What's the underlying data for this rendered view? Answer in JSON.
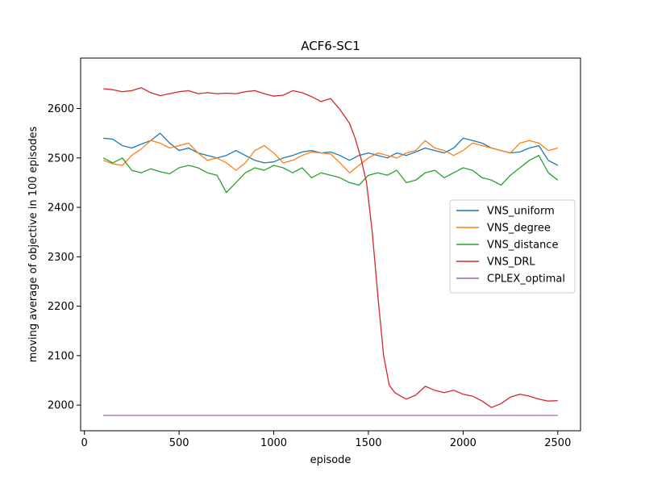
{
  "chart_data": {
    "type": "line",
    "title": "ACF6-SC1",
    "xlabel": "episode",
    "ylabel": "moving average of objective in 100 episodes",
    "xlim": [
      -20,
      2620
    ],
    "ylim": [
      1948,
      2702
    ],
    "xticks": [
      0,
      500,
      1000,
      1500,
      2000,
      2500
    ],
    "yticks": [
      2000,
      2100,
      2200,
      2300,
      2400,
      2500,
      2600
    ],
    "grid": false,
    "legend": "center-right",
    "series": [
      {
        "name": "VNS_uniform",
        "color": "#1f77b4",
        "x": [
          100,
          150,
          200,
          250,
          300,
          350,
          400,
          450,
          500,
          550,
          600,
          650,
          700,
          750,
          800,
          850,
          900,
          950,
          1000,
          1050,
          1100,
          1150,
          1200,
          1250,
          1300,
          1350,
          1400,
          1450,
          1500,
          1550,
          1600,
          1650,
          1700,
          1750,
          1800,
          1850,
          1900,
          1950,
          2000,
          2050,
          2100,
          2150,
          2200,
          2250,
          2300,
          2350,
          2400,
          2450,
          2500
        ],
        "y": [
          2540,
          2538,
          2525,
          2520,
          2528,
          2535,
          2550,
          2530,
          2515,
          2520,
          2510,
          2505,
          2500,
          2505,
          2515,
          2505,
          2495,
          2490,
          2492,
          2500,
          2505,
          2512,
          2515,
          2510,
          2512,
          2505,
          2495,
          2505,
          2510,
          2505,
          2500,
          2510,
          2505,
          2512,
          2520,
          2515,
          2510,
          2520,
          2540,
          2535,
          2530,
          2520,
          2515,
          2510,
          2512,
          2520,
          2525,
          2495,
          2485
        ]
      },
      {
        "name": "VNS_degree",
        "color": "#ff7f0e",
        "x": [
          100,
          150,
          200,
          250,
          300,
          350,
          400,
          450,
          500,
          550,
          600,
          650,
          700,
          750,
          800,
          850,
          900,
          950,
          1000,
          1050,
          1100,
          1150,
          1200,
          1250,
          1300,
          1350,
          1400,
          1450,
          1500,
          1550,
          1600,
          1650,
          1700,
          1750,
          1800,
          1850,
          1900,
          1950,
          2000,
          2050,
          2100,
          2150,
          2200,
          2250,
          2300,
          2350,
          2400,
          2450,
          2500
        ],
        "y": [
          2495,
          2488,
          2485,
          2505,
          2518,
          2535,
          2530,
          2520,
          2525,
          2530,
          2510,
          2495,
          2500,
          2490,
          2475,
          2490,
          2515,
          2525,
          2510,
          2490,
          2495,
          2505,
          2512,
          2510,
          2508,
          2490,
          2470,
          2485,
          2500,
          2510,
          2505,
          2500,
          2510,
          2515,
          2535,
          2520,
          2515,
          2505,
          2515,
          2530,
          2525,
          2520,
          2515,
          2510,
          2530,
          2535,
          2530,
          2515,
          2520
        ]
      },
      {
        "name": "VNS_distance",
        "color": "#2ca02c",
        "x": [
          100,
          150,
          200,
          250,
          300,
          350,
          400,
          450,
          500,
          550,
          600,
          650,
          700,
          750,
          800,
          850,
          900,
          950,
          1000,
          1050,
          1100,
          1150,
          1200,
          1250,
          1300,
          1350,
          1400,
          1450,
          1500,
          1550,
          1600,
          1650,
          1700,
          1750,
          1800,
          1850,
          1900,
          1950,
          2000,
          2050,
          2100,
          2150,
          2200,
          2250,
          2300,
          2350,
          2400,
          2450,
          2500
        ],
        "y": [
          2500,
          2490,
          2500,
          2475,
          2470,
          2478,
          2472,
          2468,
          2480,
          2485,
          2480,
          2470,
          2465,
          2430,
          2450,
          2470,
          2480,
          2475,
          2485,
          2480,
          2470,
          2480,
          2460,
          2470,
          2465,
          2460,
          2450,
          2445,
          2465,
          2470,
          2465,
          2475,
          2450,
          2455,
          2470,
          2475,
          2460,
          2470,
          2480,
          2475,
          2460,
          2455,
          2445,
          2465,
          2480,
          2495,
          2505,
          2470,
          2455
        ]
      },
      {
        "name": "VNS_DRL",
        "color": "#d62728",
        "x": [
          100,
          150,
          200,
          250,
          300,
          350,
          400,
          450,
          500,
          550,
          600,
          650,
          700,
          750,
          800,
          850,
          900,
          950,
          1000,
          1050,
          1100,
          1150,
          1200,
          1250,
          1300,
          1350,
          1400,
          1430,
          1460,
          1490,
          1520,
          1550,
          1580,
          1610,
          1640,
          1670,
          1700,
          1750,
          1800,
          1850,
          1900,
          1950,
          2000,
          2050,
          2100,
          2150,
          2200,
          2250,
          2300,
          2350,
          2400,
          2450,
          2500
        ],
        "y": [
          2640,
          2638,
          2634,
          2636,
          2642,
          2632,
          2626,
          2630,
          2634,
          2636,
          2630,
          2632,
          2630,
          2631,
          2630,
          2634,
          2636,
          2630,
          2625,
          2627,
          2636,
          2632,
          2624,
          2614,
          2620,
          2598,
          2570,
          2540,
          2500,
          2450,
          2350,
          2220,
          2100,
          2040,
          2025,
          2018,
          2012,
          2020,
          2038,
          2030,
          2025,
          2030,
          2022,
          2018,
          2008,
          1995,
          2003,
          2016,
          2022,
          2018,
          2012,
          2008,
          2009
        ]
      },
      {
        "name": "CPLEX_optimal",
        "color": "#9467bd",
        "x": [
          100,
          2500
        ],
        "y": [
          1979,
          1979
        ]
      }
    ]
  }
}
